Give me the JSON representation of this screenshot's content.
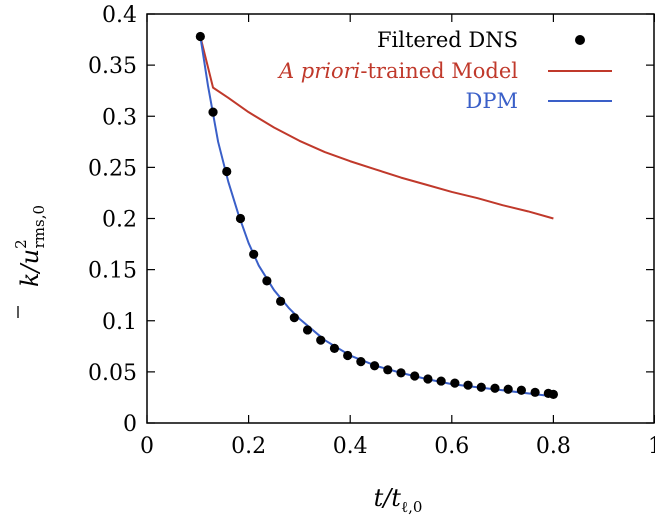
{
  "chart_data": {
    "type": "line",
    "xlabel": {
      "main": "t/t",
      "sub": "ℓ,0"
    },
    "ylabel": {
      "main": "k/u",
      "sup": "2",
      "sub": "rms,0"
    },
    "xlim": [
      0,
      1
    ],
    "ylim": [
      0,
      0.4
    ],
    "x_ticks": [
      0,
      0.2,
      0.4,
      0.6,
      0.8,
      1
    ],
    "x_tick_labels": [
      "0",
      "0.2",
      "0.4",
      "0.6",
      "0.8",
      "1"
    ],
    "y_ticks": [
      0,
      0.05,
      0.1,
      0.15,
      0.2,
      0.25,
      0.3,
      0.35,
      0.4
    ],
    "y_tick_labels": [
      "0",
      "0.05",
      "0.1",
      "0.15",
      "0.2",
      "0.25",
      "0.3",
      "0.35",
      "0.4"
    ],
    "grid": false,
    "legend_position": "top-right",
    "series": [
      {
        "name": "Filtered DNS",
        "kind": "scatter",
        "color": "#000000",
        "x": [
          0.105,
          0.13,
          0.157,
          0.184,
          0.21,
          0.236,
          0.263,
          0.29,
          0.316,
          0.342,
          0.369,
          0.395,
          0.421,
          0.448,
          0.474,
          0.5,
          0.527,
          0.553,
          0.579,
          0.606,
          0.632,
          0.658,
          0.685,
          0.711,
          0.737,
          0.764,
          0.79,
          0.8
        ],
        "y": [
          0.378,
          0.304,
          0.246,
          0.2,
          0.165,
          0.139,
          0.119,
          0.103,
          0.091,
          0.081,
          0.073,
          0.066,
          0.06,
          0.056,
          0.052,
          0.049,
          0.046,
          0.043,
          0.041,
          0.039,
          0.037,
          0.035,
          0.034,
          0.033,
          0.032,
          0.03,
          0.029,
          0.028
        ]
      },
      {
        "name_italic": "A priori",
        "name_rest": "-trained Model",
        "kind": "line",
        "color": "#c0392b",
        "x": [
          0.105,
          0.13,
          0.16,
          0.2,
          0.25,
          0.3,
          0.35,
          0.4,
          0.45,
          0.5,
          0.55,
          0.6,
          0.65,
          0.7,
          0.75,
          0.8
        ],
        "y": [
          0.378,
          0.328,
          0.318,
          0.304,
          0.289,
          0.276,
          0.265,
          0.256,
          0.248,
          0.24,
          0.233,
          0.226,
          0.22,
          0.213,
          0.207,
          0.2
        ]
      },
      {
        "name": "DPM",
        "kind": "line",
        "color": "#3a5fc8",
        "x": [
          0.105,
          0.12,
          0.14,
          0.16,
          0.18,
          0.2,
          0.22,
          0.25,
          0.28,
          0.3,
          0.35,
          0.4,
          0.45,
          0.5,
          0.55,
          0.6,
          0.65,
          0.7,
          0.75,
          0.8
        ],
        "y": [
          0.378,
          0.33,
          0.275,
          0.236,
          0.204,
          0.176,
          0.154,
          0.13,
          0.112,
          0.102,
          0.081,
          0.066,
          0.056,
          0.049,
          0.043,
          0.038,
          0.035,
          0.032,
          0.029,
          0.026
        ]
      }
    ]
  }
}
